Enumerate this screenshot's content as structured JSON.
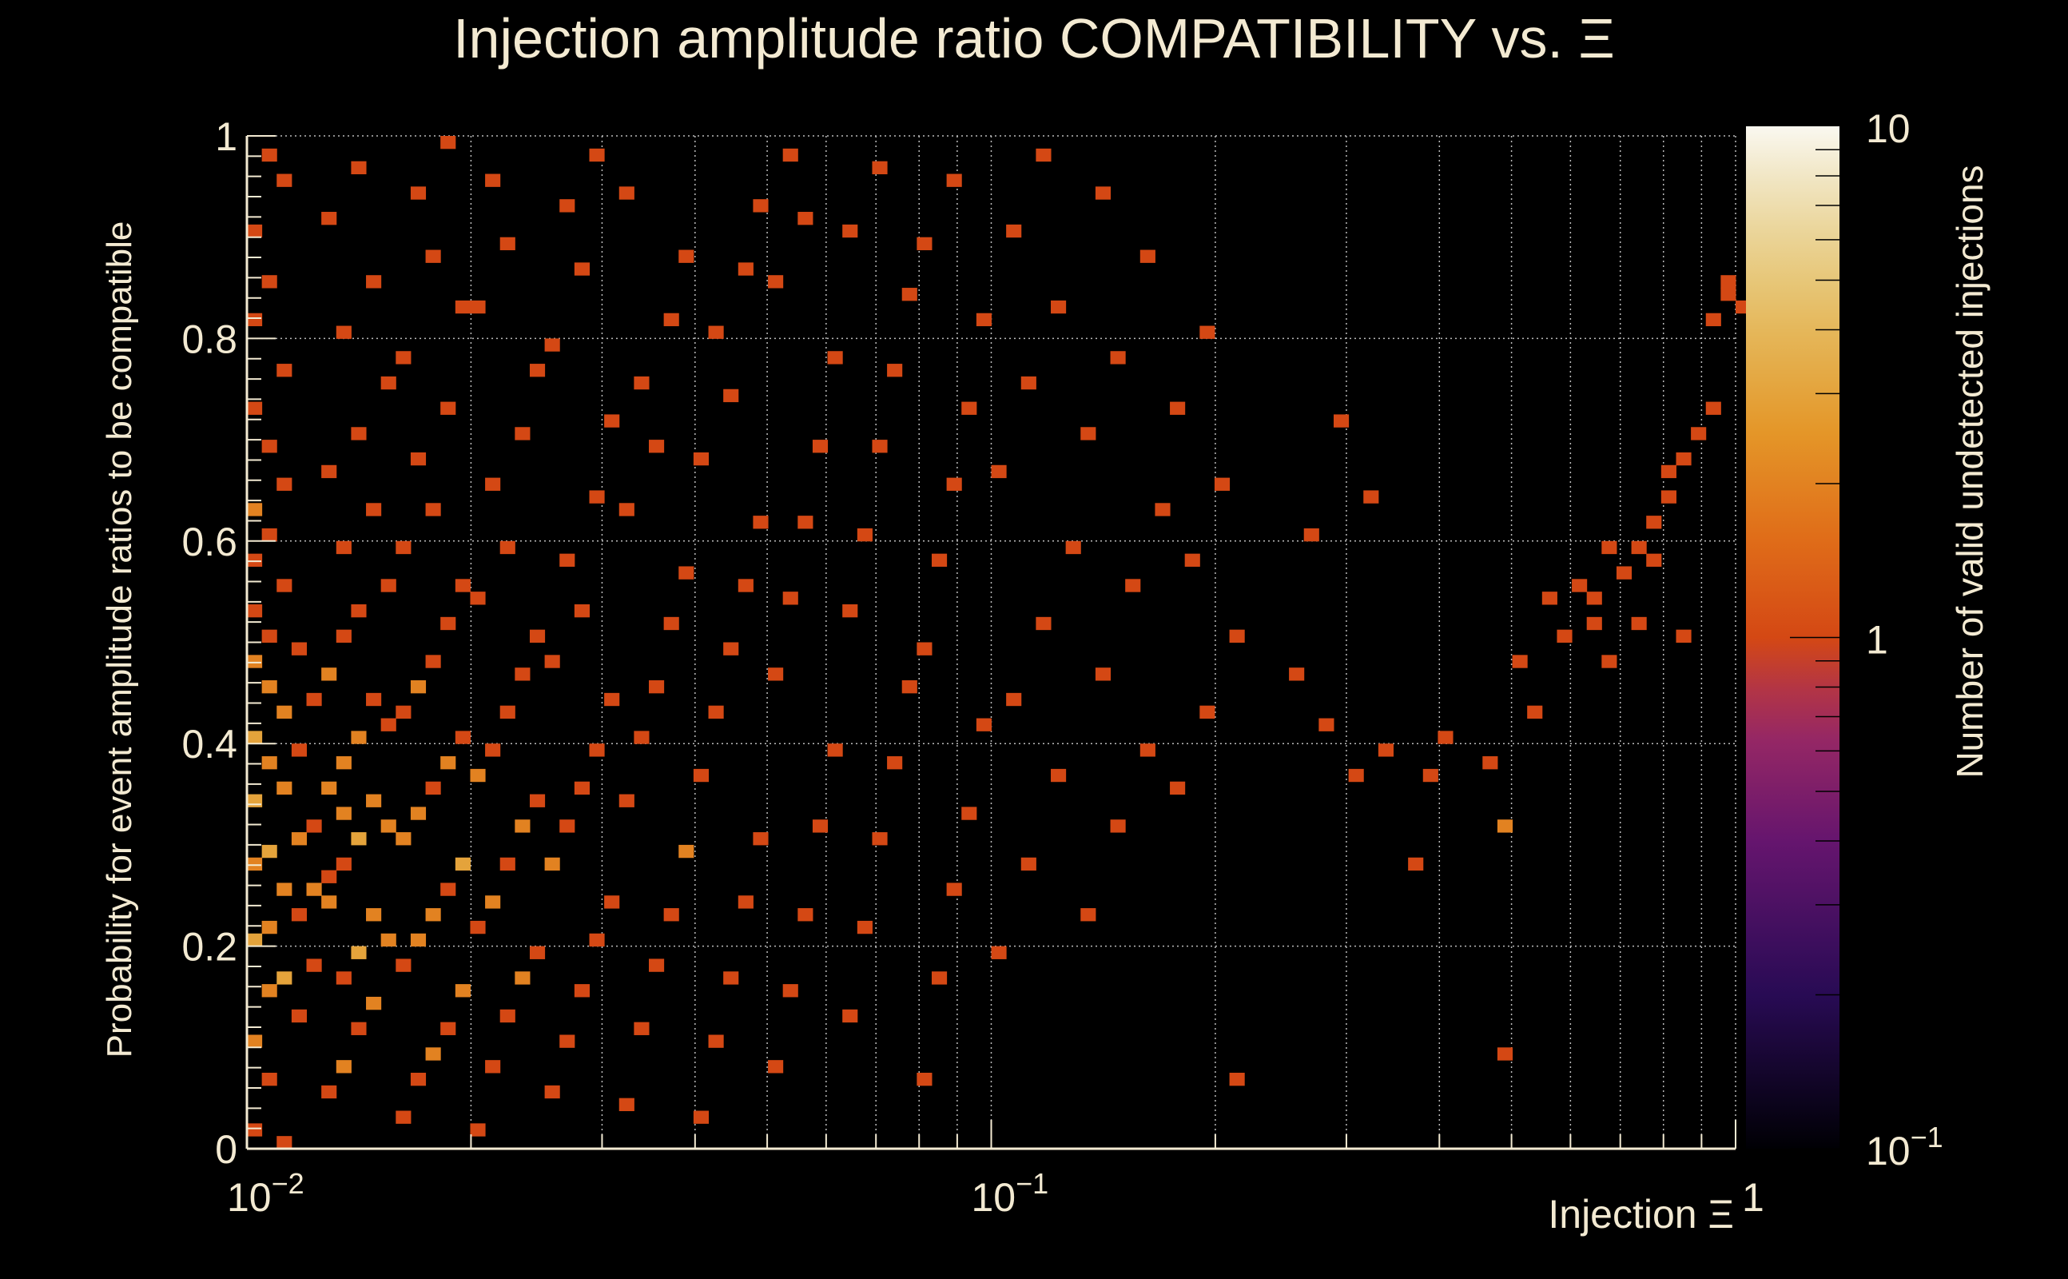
{
  "chart_data": {
    "type": "heatmap",
    "title": "Injection amplitude ratio COMPATIBILITY vs.  Ξ",
    "xlabel": "Injection Ξ",
    "ylabel": "Probability for event amplitude ratios to be compatible",
    "zlabel": "Number of valid undetected injections",
    "xscale": "log",
    "xlim": [
      0.01,
      1
    ],
    "ylim": [
      0,
      1
    ],
    "zscale": "log",
    "zlim": [
      0.1,
      10
    ],
    "x_bins": 100,
    "y_bins": 80,
    "xticks": [
      {
        "v": 0.01,
        "base": "10",
        "exp": "−2"
      },
      {
        "v": 0.1,
        "base": "10",
        "exp": "−1"
      },
      {
        "v": 1,
        "base": "1",
        "exp": ""
      }
    ],
    "yticks": [
      "0",
      "0.2",
      "0.4",
      "0.6",
      "0.8",
      "1"
    ],
    "zticks": [
      {
        "v": 0.1,
        "base": "10",
        "exp": "−1"
      },
      {
        "v": 1,
        "base": "1",
        "exp": ""
      },
      {
        "v": 10,
        "base": "10",
        "exp": ""
      }
    ],
    "grid": true,
    "cells": [
      [
        0,
        1,
        1
      ],
      [
        2,
        0,
        1
      ],
      [
        1,
        5,
        1
      ],
      [
        0,
        8,
        2
      ],
      [
        3,
        10,
        1
      ],
      [
        1,
        12,
        2
      ],
      [
        2,
        13,
        3
      ],
      [
        4,
        14,
        1
      ],
      [
        0,
        16,
        3
      ],
      [
        1,
        17,
        2
      ],
      [
        3,
        18,
        1
      ],
      [
        2,
        20,
        2
      ],
      [
        4,
        20,
        2
      ],
      [
        5,
        21,
        1
      ],
      [
        0,
        22,
        2
      ],
      [
        1,
        23,
        3
      ],
      [
        3,
        24,
        2
      ],
      [
        4,
        25,
        1
      ],
      [
        6,
        26,
        2
      ],
      [
        0,
        27,
        3
      ],
      [
        2,
        28,
        2
      ],
      [
        1,
        30,
        2
      ],
      [
        3,
        31,
        1
      ],
      [
        0,
        32,
        3
      ],
      [
        2,
        34,
        2
      ],
      [
        4,
        35,
        1
      ],
      [
        1,
        36,
        2
      ],
      [
        0,
        38,
        2
      ],
      [
        3,
        39,
        1
      ],
      [
        1,
        40,
        1
      ],
      [
        0,
        42,
        1
      ],
      [
        2,
        44,
        1
      ],
      [
        0,
        46,
        1
      ],
      [
        1,
        48,
        1
      ],
      [
        0,
        50,
        2
      ],
      [
        2,
        52,
        1
      ],
      [
        1,
        55,
        1
      ],
      [
        0,
        58,
        1
      ],
      [
        2,
        61,
        1
      ],
      [
        0,
        65,
        1
      ],
      [
        1,
        68,
        1
      ],
      [
        0,
        72,
        1
      ],
      [
        2,
        76,
        1
      ],
      [
        1,
        78,
        1
      ],
      [
        5,
        4,
        1
      ],
      [
        6,
        6,
        2
      ],
      [
        7,
        9,
        1
      ],
      [
        8,
        11,
        2
      ],
      [
        6,
        13,
        1
      ],
      [
        7,
        15,
        3
      ],
      [
        9,
        16,
        2
      ],
      [
        8,
        18,
        2
      ],
      [
        5,
        19,
        2
      ],
      [
        6,
        22,
        1
      ],
      [
        7,
        24,
        3
      ],
      [
        9,
        25,
        2
      ],
      [
        8,
        27,
        2
      ],
      [
        5,
        28,
        2
      ],
      [
        6,
        30,
        2
      ],
      [
        7,
        32,
        2
      ],
      [
        9,
        33,
        1
      ],
      [
        8,
        35,
        1
      ],
      [
        5,
        37,
        2
      ],
      [
        6,
        40,
        1
      ],
      [
        7,
        42,
        1
      ],
      [
        9,
        44,
        1
      ],
      [
        6,
        47,
        1
      ],
      [
        8,
        50,
        1
      ],
      [
        5,
        53,
        1
      ],
      [
        7,
        56,
        1
      ],
      [
        9,
        60,
        1
      ],
      [
        6,
        64,
        1
      ],
      [
        8,
        68,
        1
      ],
      [
        5,
        73,
        1
      ],
      [
        7,
        77,
        1
      ],
      [
        10,
        2,
        1
      ],
      [
        11,
        5,
        1
      ],
      [
        12,
        7,
        2
      ],
      [
        13,
        9,
        1
      ],
      [
        14,
        12,
        2
      ],
      [
        10,
        14,
        1
      ],
      [
        11,
        16,
        2
      ],
      [
        12,
        18,
        2
      ],
      [
        13,
        20,
        1
      ],
      [
        14,
        22,
        3
      ],
      [
        10,
        24,
        2
      ],
      [
        11,
        26,
        2
      ],
      [
        12,
        28,
        1
      ],
      [
        13,
        30,
        2
      ],
      [
        14,
        32,
        1
      ],
      [
        10,
        34,
        1
      ],
      [
        11,
        36,
        2
      ],
      [
        12,
        38,
        1
      ],
      [
        13,
        41,
        1
      ],
      [
        14,
        44,
        1
      ],
      [
        10,
        47,
        1
      ],
      [
        12,
        50,
        1
      ],
      [
        11,
        54,
        1
      ],
      [
        13,
        58,
        1
      ],
      [
        10,
        62,
        1
      ],
      [
        14,
        66,
        1
      ],
      [
        12,
        70,
        1
      ],
      [
        11,
        75,
        1
      ],
      [
        13,
        79,
        1
      ],
      [
        15,
        1,
        1
      ],
      [
        16,
        6,
        1
      ],
      [
        17,
        10,
        1
      ],
      [
        18,
        13,
        2
      ],
      [
        19,
        15,
        1
      ],
      [
        15,
        17,
        1
      ],
      [
        16,
        19,
        2
      ],
      [
        17,
        22,
        1
      ],
      [
        18,
        25,
        2
      ],
      [
        19,
        27,
        1
      ],
      [
        15,
        29,
        2
      ],
      [
        16,
        31,
        1
      ],
      [
        17,
        34,
        1
      ],
      [
        18,
        37,
        1
      ],
      [
        19,
        40,
        1
      ],
      [
        15,
        43,
        1
      ],
      [
        17,
        47,
        1
      ],
      [
        16,
        52,
        1
      ],
      [
        18,
        56,
        1
      ],
      [
        19,
        61,
        1
      ],
      [
        15,
        66,
        1
      ],
      [
        17,
        71,
        1
      ],
      [
        16,
        76,
        1
      ],
      [
        20,
        4,
        1
      ],
      [
        21,
        8,
        1
      ],
      [
        22,
        12,
        1
      ],
      [
        23,
        16,
        1
      ],
      [
        24,
        19,
        1
      ],
      [
        20,
        22,
        2
      ],
      [
        21,
        25,
        1
      ],
      [
        22,
        28,
        1
      ],
      [
        23,
        31,
        1
      ],
      [
        24,
        35,
        1
      ],
      [
        20,
        38,
        1
      ],
      [
        22,
        42,
        1
      ],
      [
        21,
        46,
        1
      ],
      [
        23,
        51,
        1
      ],
      [
        24,
        57,
        1
      ],
      [
        20,
        63,
        1
      ],
      [
        22,
        69,
        1
      ],
      [
        21,
        74,
        1
      ],
      [
        23,
        78,
        1
      ],
      [
        25,
        3,
        1
      ],
      [
        26,
        9,
        1
      ],
      [
        27,
        14,
        1
      ],
      [
        28,
        18,
        1
      ],
      [
        29,
        23,
        2
      ],
      [
        25,
        27,
        1
      ],
      [
        26,
        32,
        1
      ],
      [
        27,
        36,
        1
      ],
      [
        28,
        41,
        1
      ],
      [
        29,
        45,
        1
      ],
      [
        25,
        50,
        1
      ],
      [
        27,
        55,
        1
      ],
      [
        26,
        60,
        1
      ],
      [
        28,
        65,
        1
      ],
      [
        29,
        70,
        1
      ],
      [
        25,
        75,
        1
      ],
      [
        30,
        2,
        1
      ],
      [
        31,
        8,
        1
      ],
      [
        32,
        13,
        1
      ],
      [
        33,
        19,
        1
      ],
      [
        34,
        24,
        1
      ],
      [
        30,
        29,
        1
      ],
      [
        31,
        34,
        1
      ],
      [
        32,
        39,
        1
      ],
      [
        33,
        44,
        1
      ],
      [
        34,
        49,
        1
      ],
      [
        30,
        54,
        1
      ],
      [
        32,
        59,
        1
      ],
      [
        31,
        64,
        1
      ],
      [
        33,
        69,
        1
      ],
      [
        34,
        74,
        1
      ],
      [
        35,
        6,
        1
      ],
      [
        36,
        12,
        1
      ],
      [
        37,
        18,
        1
      ],
      [
        38,
        25,
        1
      ],
      [
        39,
        31,
        1
      ],
      [
        35,
        37,
        1
      ],
      [
        36,
        43,
        1
      ],
      [
        37,
        49,
        1
      ],
      [
        38,
        55,
        1
      ],
      [
        39,
        62,
        1
      ],
      [
        35,
        68,
        1
      ],
      [
        37,
        73,
        1
      ],
      [
        36,
        78,
        1
      ],
      [
        40,
        10,
        1
      ],
      [
        41,
        17,
        1
      ],
      [
        42,
        24,
        1
      ],
      [
        43,
        30,
        1
      ],
      [
        44,
        36,
        1
      ],
      [
        40,
        42,
        1
      ],
      [
        41,
        48,
        1
      ],
      [
        42,
        55,
        1
      ],
      [
        43,
        61,
        1
      ],
      [
        44,
        67,
        1
      ],
      [
        40,
        72,
        1
      ],
      [
        42,
        77,
        1
      ],
      [
        45,
        5,
        1
      ],
      [
        46,
        13,
        1
      ],
      [
        47,
        20,
        1
      ],
      [
        48,
        26,
        1
      ],
      [
        49,
        33,
        1
      ],
      [
        45,
        39,
        1
      ],
      [
        46,
        46,
        1
      ],
      [
        47,
        52,
        1
      ],
      [
        48,
        58,
        1
      ],
      [
        49,
        65,
        1
      ],
      [
        45,
        71,
        1
      ],
      [
        47,
        76,
        1
      ],
      [
        50,
        15,
        1
      ],
      [
        52,
        22,
        1
      ],
      [
        54,
        29,
        1
      ],
      [
        51,
        35,
        1
      ],
      [
        53,
        41,
        1
      ],
      [
        55,
        47,
        1
      ],
      [
        50,
        53,
        1
      ],
      [
        52,
        60,
        1
      ],
      [
        54,
        66,
        1
      ],
      [
        51,
        72,
        1
      ],
      [
        53,
        78,
        1
      ],
      [
        56,
        18,
        1
      ],
      [
        58,
        25,
        1
      ],
      [
        60,
        31,
        1
      ],
      [
        57,
        37,
        1
      ],
      [
        59,
        44,
        1
      ],
      [
        61,
        50,
        1
      ],
      [
        56,
        56,
        1
      ],
      [
        58,
        62,
        1
      ],
      [
        60,
        70,
        1
      ],
      [
        57,
        75,
        1
      ],
      [
        62,
        28,
        1
      ],
      [
        64,
        34,
        1
      ],
      [
        66,
        40,
        1
      ],
      [
        63,
        46,
        1
      ],
      [
        65,
        52,
        1
      ],
      [
        62,
        58,
        1
      ],
      [
        66,
        5,
        1
      ],
      [
        64,
        64,
        1
      ],
      [
        70,
        37,
        1
      ],
      [
        72,
        33,
        1
      ],
      [
        74,
        29,
        1
      ],
      [
        76,
        31,
        1
      ],
      [
        78,
        22,
        1
      ],
      [
        71,
        48,
        1
      ],
      [
        73,
        57,
        1
      ],
      [
        75,
        51,
        1
      ],
      [
        79,
        29,
        1
      ],
      [
        80,
        32,
        1
      ],
      [
        83,
        30,
        1
      ],
      [
        84,
        7,
        1
      ],
      [
        84,
        25,
        2
      ],
      [
        86,
        34,
        1
      ],
      [
        88,
        40,
        1
      ],
      [
        89,
        44,
        1
      ],
      [
        90,
        41,
        1
      ],
      [
        91,
        38,
        1
      ],
      [
        90,
        43,
        1
      ],
      [
        91,
        47,
        1
      ],
      [
        92,
        45,
        1
      ],
      [
        93,
        41,
        1
      ],
      [
        93,
        47,
        1
      ],
      [
        94,
        46,
        1
      ],
      [
        94,
        49,
        1
      ],
      [
        95,
        51,
        1
      ],
      [
        95,
        53,
        1
      ],
      [
        96,
        54,
        1
      ],
      [
        96,
        40,
        1
      ],
      [
        97,
        56,
        1
      ],
      [
        98,
        58,
        1
      ],
      [
        98,
        65,
        1
      ],
      [
        99,
        67,
        1
      ],
      [
        99,
        68,
        1
      ],
      [
        100,
        66,
        1
      ],
      [
        85,
        38,
        1
      ],
      [
        87,
        43,
        1
      ]
    ]
  }
}
